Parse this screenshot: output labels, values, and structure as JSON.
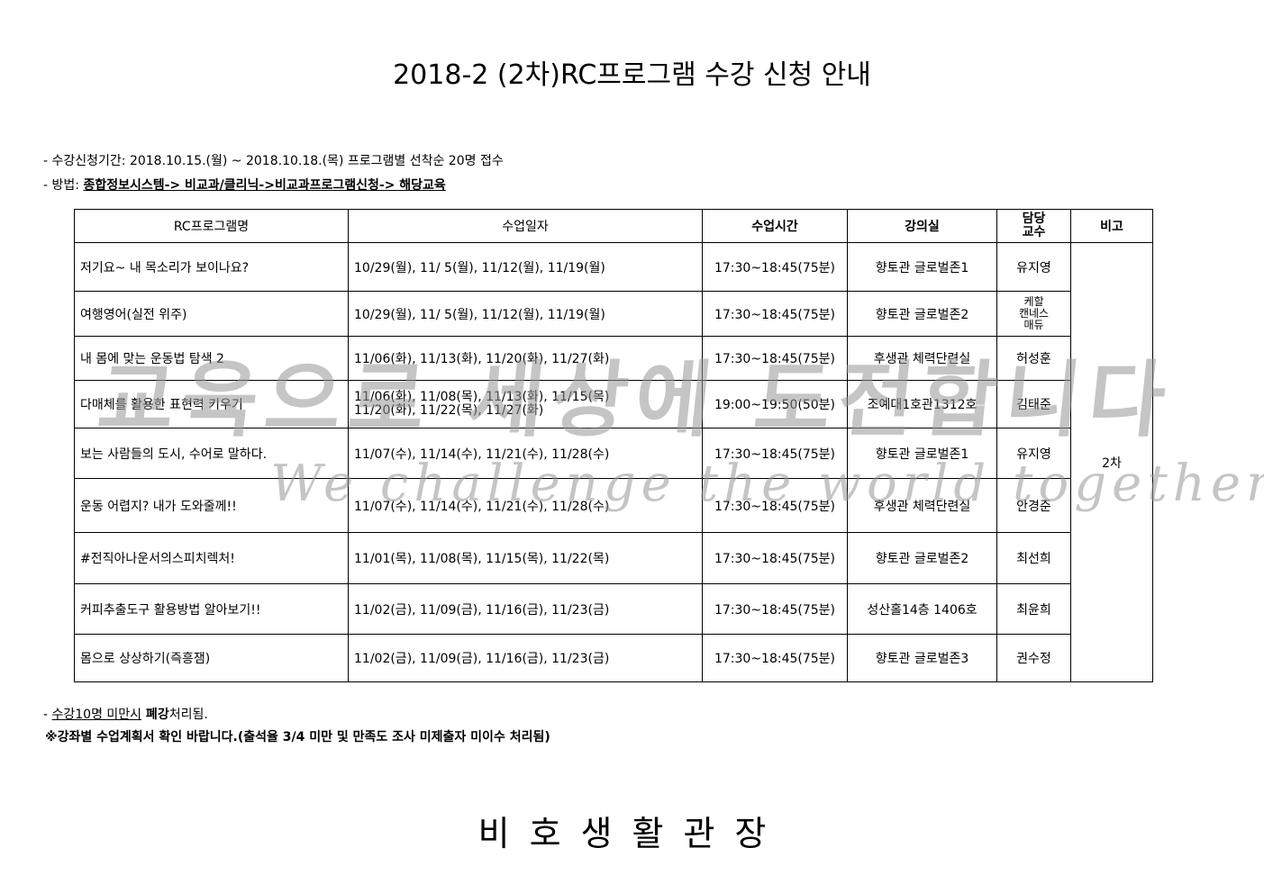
{
  "title": "2018-2 (2차)RC프로그램 수강 신청 안내",
  "info": {
    "period": "- 수강신청기간: 2018.10.15.(월) ~ 2018.10.18.(목) 프로그램별 선착순 20명 접수",
    "method_label": "- 방법: ",
    "method_value": "종합정보시스템-> 비교과/클리닉->비교과프로그램신청-> 해당교육"
  },
  "table": {
    "headers": [
      "RC프로그램명",
      "수업일자",
      "수업시간",
      "강의실",
      "담당\n교수",
      "비고"
    ],
    "note_merged": "2차",
    "rows": [
      {
        "name": "저기요~ 내 목소리가 보이나요?",
        "dates": "10/29(월), 11/ 5(월), 11/12(월), 11/19(월)",
        "time": "17:30~18:45(75분)",
        "room": "향토관 글로벌존1",
        "prof": "유지영"
      },
      {
        "name": "여행영어(실전 위주)",
        "dates": "10/29(월), 11/ 5(월), 11/12(월), 11/19(월)",
        "time": "17:30~18:45(75분)",
        "room": "향토관 글로벌존2",
        "prof": "케할\n캔네스\n매듀"
      },
      {
        "name": "내 몸에 맞는 운동법 탐색 2",
        "dates": "11/06(화), 11/13(화), 11/20(화), 11/27(화)",
        "time": "17:30~18:45(75분)",
        "room": "후생관 체력단련실",
        "prof": "허성훈"
      },
      {
        "name": "다매체를 활용한 표현력 키우기",
        "dates": "11/06(화), 11/08(목), 11/13(화), 11/15(목)\n11/20(화), 11/22(목), 11/27(화)",
        "time": "19:00~19:50(50분)",
        "room": "조예대1호관1312호",
        "prof": "김태준"
      },
      {
        "name": "보는 사람들의 도시, 수어로 말하다.",
        "dates": "11/07(수), 11/14(수), 11/21(수), 11/28(수)",
        "time": "17:30~18:45(75분)",
        "room": "향토관 글로벌존1",
        "prof": "유지영"
      },
      {
        "name": "운동 어렵지? 내가 도와줄께!!",
        "dates": "11/07(수), 11/14(수), 11/21(수), 11/28(수)",
        "time": "17:30~18:45(75분)",
        "room": "후생관 체력단련실",
        "prof": "안경준"
      },
      {
        "name": "#전직아나운서의스피치렉처!",
        "dates": "11/01(목), 11/08(목), 11/15(목), 11/22(목)",
        "time": "17:30~18:45(75분)",
        "room": "향토관 글로벌존2",
        "prof": "최선희"
      },
      {
        "name": "커피추출도구 활용방법 알아보기!!",
        "dates": "11/02(금), 11/09(금), 11/16(금), 11/23(금)",
        "time": "17:30~18:45(75분)",
        "room": "성산홀14층 1406호",
        "prof": "최윤희"
      },
      {
        "name": "몸으로 상상하기(즉흥잼)",
        "dates": "11/02(금), 11/09(금), 11/16(금), 11/23(금)",
        "time": "17:30~18:45(75분)",
        "room": "향토관 글로벌존3",
        "prof": "권수정"
      }
    ]
  },
  "notes": {
    "dash": "- ",
    "cancel_underlined": "수강10명 미만시",
    "cancel_bold": " 폐강",
    "cancel_rest": "처리됨.",
    "plan": "※강좌별 수업계획서 확인 바랍니다.(출석율 3/4 미만 및 만족도 조사 미제출자 미이수 처리됨)"
  },
  "watermark": {
    "korean": "교육으로 세상에 도전합니다",
    "english": "We challenge the world together"
  },
  "footer": "비호생활관장"
}
